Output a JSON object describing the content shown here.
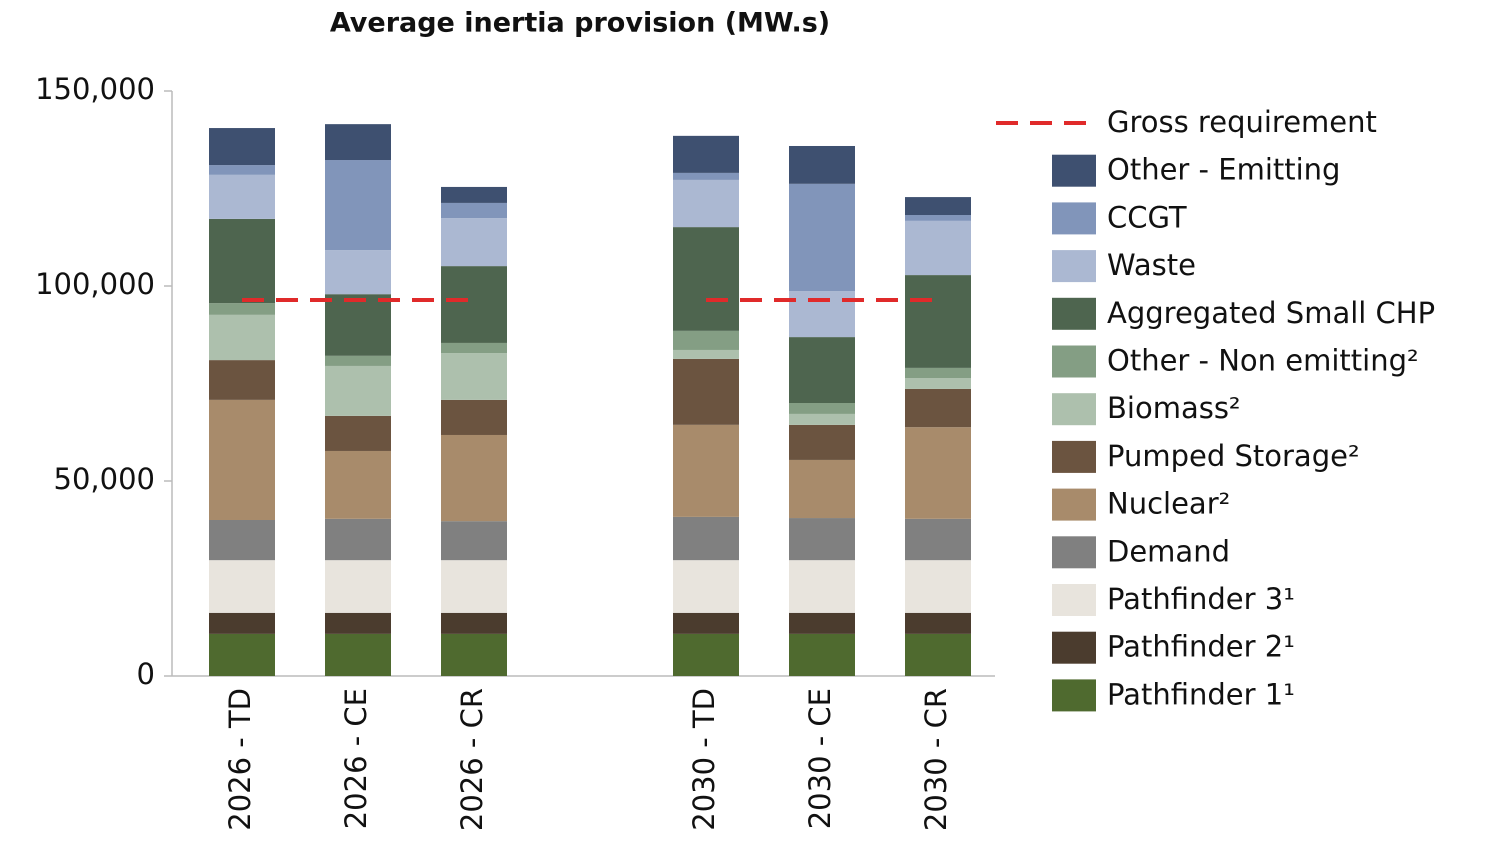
{
  "chart_data": {
    "type": "bar",
    "stacked": true,
    "title": "Average inertia provision (MW.s)",
    "categories": [
      "2026 - TD",
      "2026 - CE",
      "2026 - CR",
      null,
      "2030 - TD",
      "2030 - CE",
      "2030 - CR"
    ],
    "ylim": [
      0,
      150000
    ],
    "yticks": [
      0,
      {
        "value": 50000,
        "label": "50,000"
      },
      {
        "value": 100000,
        "label": "100,000"
      },
      {
        "value": 150000,
        "label": "150,000"
      }
    ],
    "series": [
      {
        "name": "Pathfinder 1¹",
        "color": "#4f6a2f",
        "values": [
          10800,
          10800,
          10800,
          null,
          10800,
          10800,
          10800
        ]
      },
      {
        "name": "Pathfinder 2¹",
        "color": "#4b3c2e",
        "values": [
          5400,
          5400,
          5400,
          null,
          5400,
          5400,
          5400
        ]
      },
      {
        "name": "Pathfinder 3¹",
        "color": "#e8e4dd",
        "values": [
          13500,
          13500,
          13500,
          null,
          13500,
          13500,
          13500
        ]
      },
      {
        "name": "Demand",
        "color": "#808080",
        "values": [
          10300,
          10600,
          10000,
          null,
          11100,
          10800,
          10600
        ]
      },
      {
        "name": "Nuclear²",
        "color": "#a88b6b",
        "values": [
          30800,
          17400,
          22100,
          null,
          23600,
          14900,
          23500
        ]
      },
      {
        "name": "Pumped Storage²",
        "color": "#6b5440",
        "values": [
          10200,
          9000,
          9000,
          null,
          16900,
          9000,
          9800
        ]
      },
      {
        "name": "Biomass²",
        "color": "#adc0ad",
        "values": [
          11600,
          12800,
          12000,
          null,
          2300,
          2800,
          2800
        ]
      },
      {
        "name": "Other - Non emitting²",
        "color": "#849e84",
        "values": [
          3000,
          2600,
          2600,
          null,
          4900,
          2800,
          2600
        ]
      },
      {
        "name": "Aggregated Small CHP",
        "color": "#4e654f",
        "values": [
          21600,
          15800,
          19700,
          null,
          26600,
          16900,
          23800
        ]
      },
      {
        "name": "Waste",
        "color": "#abb8d2",
        "values": [
          11300,
          11300,
          12300,
          null,
          12100,
          11800,
          13900
        ]
      },
      {
        "name": "CCGT",
        "color": "#8195ba",
        "values": [
          2500,
          23100,
          3900,
          null,
          1800,
          27500,
          1500
        ]
      },
      {
        "name": "Other - Emitting",
        "color": "#3e5070",
        "values": [
          9500,
          9200,
          4100,
          null,
          9500,
          9700,
          4600
        ]
      },
      {
        "name": "Gross requirement",
        "type": "line",
        "dashed": true,
        "color": "#e02a2a",
        "values": [
          96400,
          96400,
          96400,
          null,
          96400,
          96400,
          96400
        ]
      }
    ]
  }
}
